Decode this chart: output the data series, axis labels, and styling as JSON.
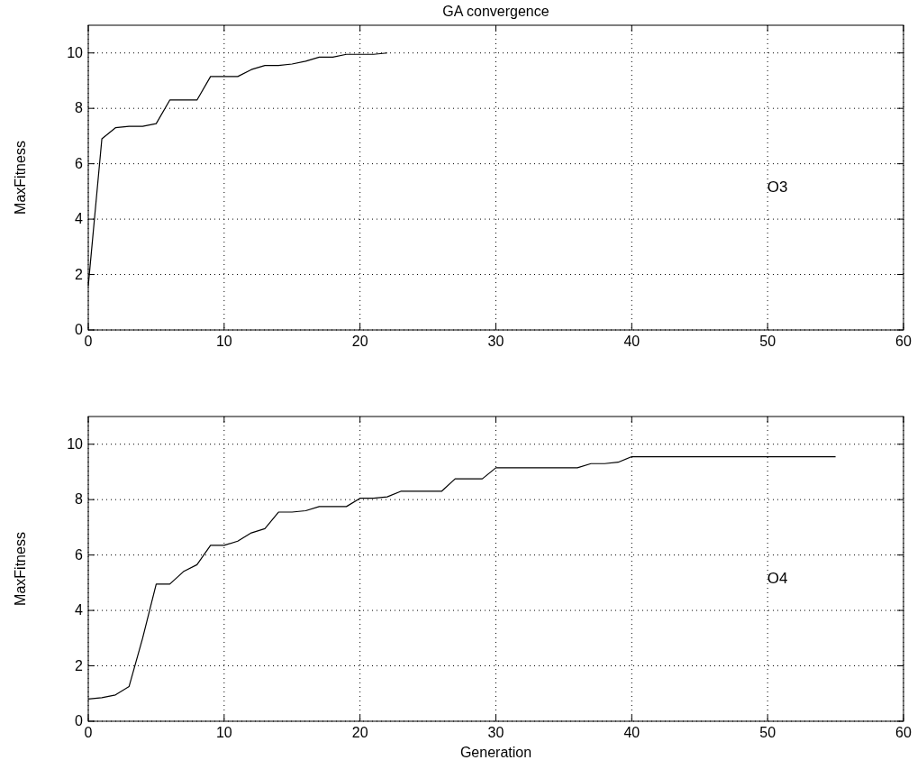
{
  "chart_data": [
    {
      "type": "line",
      "title": "GA convergence",
      "ylabel": "MaxFitness",
      "x": [
        0,
        1,
        2,
        3,
        4,
        5,
        6,
        7,
        8,
        9,
        10,
        11,
        12,
        13,
        14,
        15,
        16,
        17,
        18,
        19,
        20,
        21,
        22
      ],
      "series": [
        {
          "color": "#000000",
          "values": [
            1.6,
            6.9,
            7.3,
            7.35,
            7.35,
            7.45,
            8.3,
            8.3,
            8.3,
            9.15,
            9.15,
            9.15,
            9.4,
            9.55,
            9.55,
            9.6,
            9.7,
            9.85,
            9.85,
            9.95,
            9.95,
            9.95,
            10
          ]
        }
      ],
      "xlim": [
        0,
        60
      ],
      "xticks": [
        0,
        10,
        20,
        30,
        40,
        50,
        60
      ],
      "ylim": [
        0,
        11
      ],
      "yticks": [
        0,
        2,
        4,
        6,
        8,
        10
      ],
      "grid": true,
      "line_style": "solid",
      "annotations": [
        "O3"
      ]
    },
    {
      "type": "line",
      "xlabel": "Generation",
      "ylabel": "MaxFitness",
      "x": [
        0,
        1,
        2,
        3,
        4,
        5,
        6,
        7,
        8,
        9,
        10,
        11,
        12,
        13,
        14,
        15,
        16,
        17,
        18,
        19,
        20,
        21,
        22,
        23,
        24,
        25,
        26,
        27,
        28,
        29,
        30,
        31,
        32,
        33,
        34,
        35,
        36,
        37,
        38,
        39,
        40,
        41,
        42,
        43,
        44,
        45,
        46,
        47,
        48,
        49,
        50,
        51,
        52,
        53,
        54,
        55
      ],
      "series": [
        {
          "color": "#000000",
          "values": [
            0.8,
            0.85,
            0.95,
            1.25,
            3.0,
            4.95,
            4.95,
            5.4,
            5.65,
            6.35,
            6.35,
            6.5,
            6.8,
            6.95,
            7.55,
            7.55,
            7.6,
            7.75,
            7.75,
            7.75,
            8.05,
            8.05,
            8.1,
            8.3,
            8.3,
            8.3,
            8.3,
            8.75,
            8.75,
            8.75,
            9.15,
            9.15,
            9.15,
            9.15,
            9.15,
            9.15,
            9.15,
            9.3,
            9.3,
            9.35,
            9.55,
            9.55,
            9.55,
            9.55,
            9.55,
            9.55,
            9.55,
            9.55,
            9.55,
            9.55,
            9.55,
            9.55,
            9.55,
            9.55,
            9.55,
            9.55
          ]
        }
      ],
      "xlim": [
        0,
        60
      ],
      "xticks": [
        0,
        10,
        20,
        30,
        40,
        50,
        60
      ],
      "ylim": [
        0,
        11
      ],
      "yticks": [
        0,
        2,
        4,
        6,
        8,
        10
      ],
      "grid": true,
      "line_style": "solid",
      "annotations": [
        "O4"
      ]
    }
  ]
}
